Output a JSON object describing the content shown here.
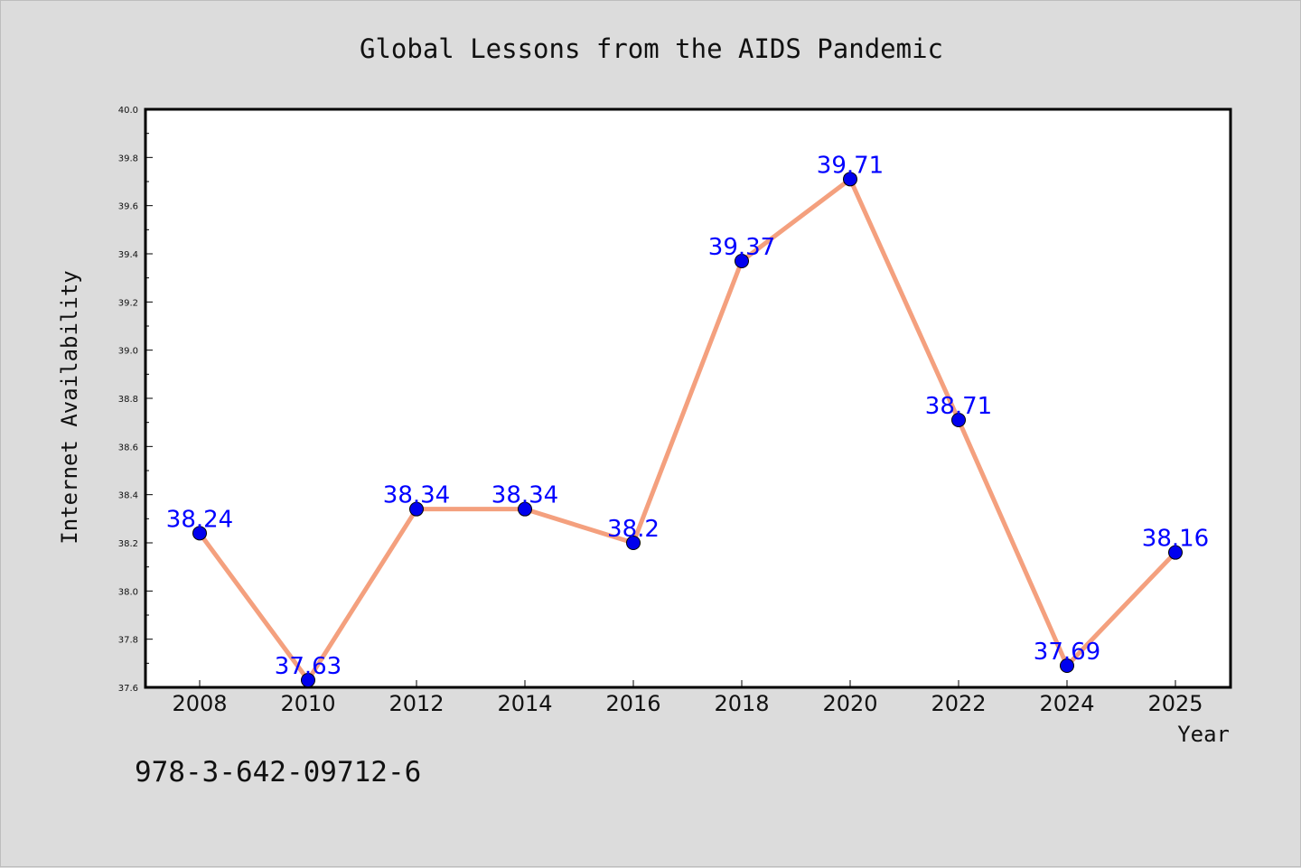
{
  "chart_data": {
    "type": "line",
    "title": "Global Lessons from the AIDS Pandemic",
    "xlabel": "Year",
    "ylabel": "Internet Availability",
    "categories": [
      "2008",
      "2010",
      "2012",
      "2014",
      "2016",
      "2018",
      "2020",
      "2022",
      "2024",
      "2025"
    ],
    "series": [
      {
        "values": [
          38.24,
          37.63,
          38.34,
          38.34,
          38.2,
          39.37,
          39.71,
          38.71,
          37.69,
          38.16
        ]
      }
    ],
    "data_labels": [
      "38.24",
      "37.63",
      "38.34",
      "38.34",
      "38.2",
      "39.37",
      "39.71",
      "38.71",
      "37.69",
      "38.16"
    ],
    "ylim": [
      37.6,
      40.0
    ],
    "yticks": [
      "37.6",
      "37.8",
      "38.0",
      "38.2",
      "38.4",
      "38.6",
      "38.8",
      "39.0",
      "39.2",
      "39.4",
      "39.6",
      "39.8",
      "40.0"
    ],
    "grid": false,
    "legend": "none",
    "colors": {
      "line": "#f4a07e",
      "marker": "#0000ee",
      "label": "#0000ff",
      "background": "#dcdcdc",
      "plot_area": "#ffffff"
    }
  },
  "footer": {
    "isbn": "978-3-642-09712-6"
  }
}
